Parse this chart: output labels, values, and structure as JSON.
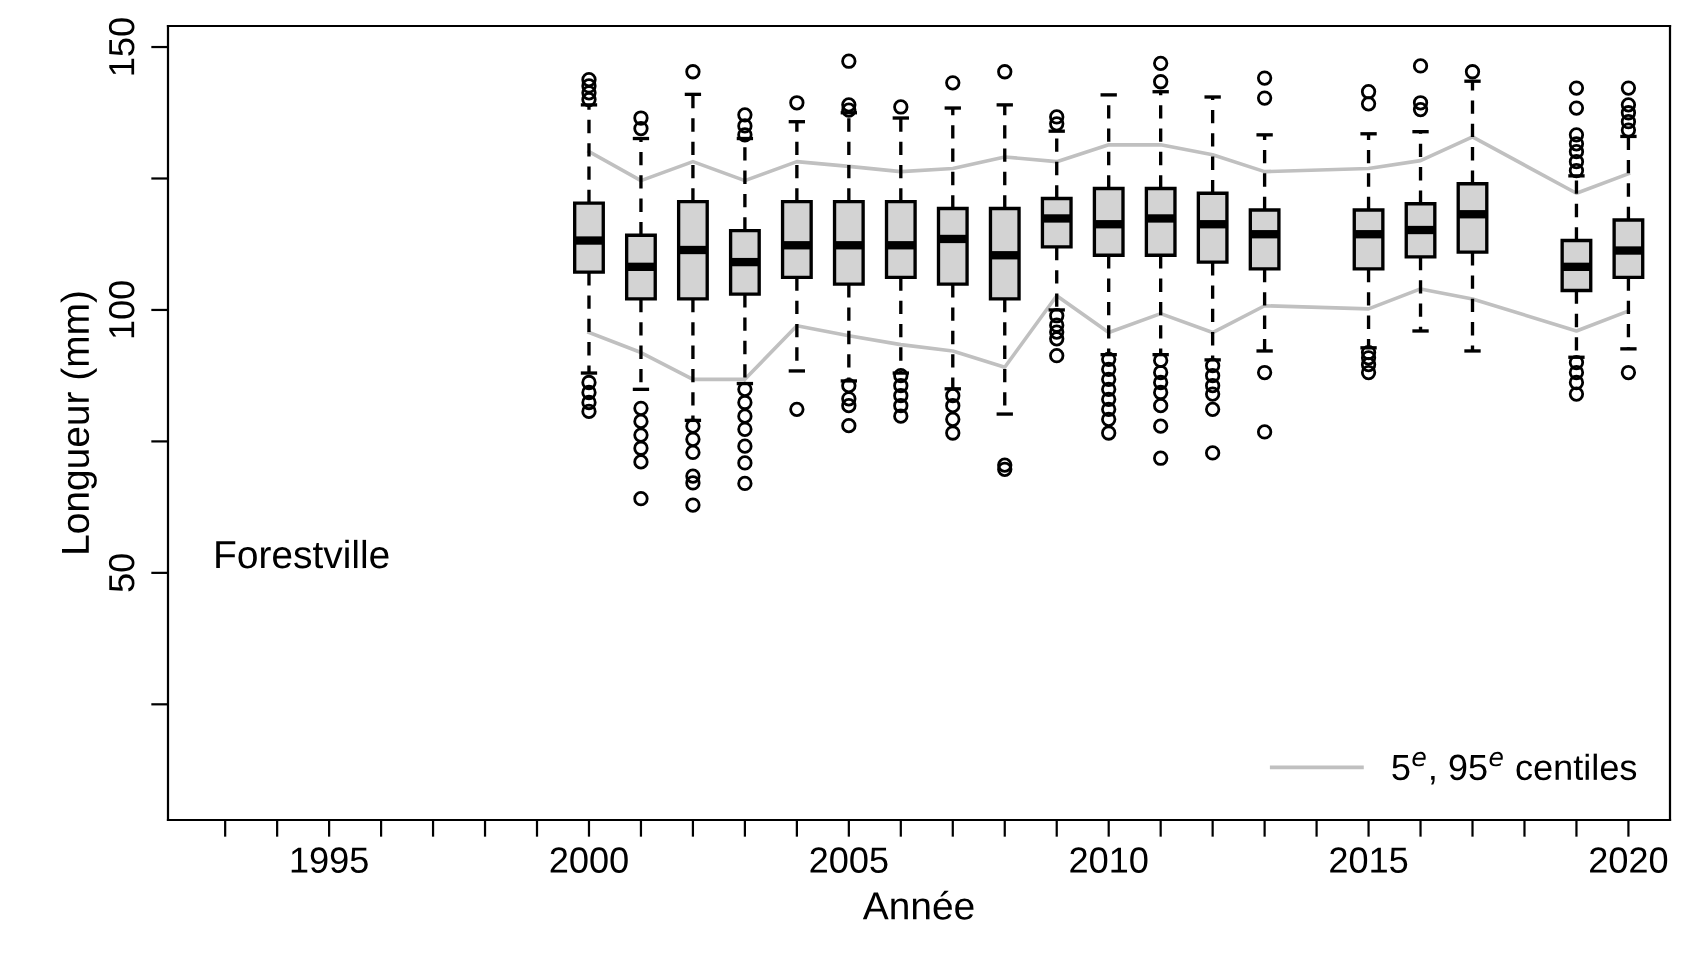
{
  "chart_data": {
    "type": "box",
    "xlabel": "Année",
    "ylabel": "Longueur (mm)",
    "annotations": [
      "Forestville"
    ],
    "x": [
      2000,
      2001,
      2002,
      2003,
      2004,
      2005,
      2006,
      2007,
      2008,
      2009,
      2010,
      2011,
      2012,
      2013,
      2015,
      2016,
      2017,
      2019,
      2020
    ],
    "color": "#d3d3d3",
    "boxes": [
      {
        "low": 88,
        "q1": 107.2,
        "median": 113.2,
        "q3": 120.3,
        "high": 139,
        "outliers": [
          80.7,
          82.4,
          84.3,
          86.2,
          140,
          141.3,
          142.6,
          143.8
        ]
      },
      {
        "low": 84.9,
        "q1": 102.1,
        "median": 108.2,
        "q3": 114.2,
        "high": 132.6,
        "outliers": [
          64.1,
          71.1,
          73.7,
          76.2,
          78.8,
          81.3,
          134.5,
          136.5
        ]
      },
      {
        "low": 79,
        "q1": 102.1,
        "median": 111.4,
        "q3": 120.6,
        "high": 141,
        "outliers": [
          62.9,
          67.1,
          68.4,
          72.9,
          75.4,
          77.9,
          145.3
        ]
      },
      {
        "low": 86,
        "q1": 103,
        "median": 109.1,
        "q3": 115.1,
        "high": 132.6,
        "outliers": [
          67,
          70.9,
          74.1,
          77.3,
          79.8,
          82.4,
          84.9,
          133.3,
          135,
          137.1
        ]
      },
      {
        "low": 88.4,
        "q1": 106.2,
        "median": 112.3,
        "q3": 120.6,
        "high": 135.8,
        "outliers": [
          81.1,
          139.4
        ]
      },
      {
        "low": 86.5,
        "q1": 104.9,
        "median": 112.3,
        "q3": 120.6,
        "high": 137.5,
        "outliers": [
          78,
          81.8,
          83.1,
          85.6,
          138,
          139,
          147.3
        ]
      },
      {
        "low": 88,
        "q1": 106.2,
        "median": 112.3,
        "q3": 120.6,
        "high": 136.5,
        "outliers": [
          79.8,
          81.8,
          83.7,
          85.6,
          87.5,
          138.6
        ]
      },
      {
        "low": 85,
        "q1": 104.9,
        "median": 113.5,
        "q3": 119.3,
        "high": 138.4,
        "outliers": [
          76.6,
          79.2,
          81.8,
          83.7,
          143.2
        ]
      },
      {
        "low": 80.2,
        "q1": 102.1,
        "median": 110.4,
        "q3": 119.3,
        "high": 139,
        "outliers": [
          69.7,
          70.5,
          145.3
        ]
      },
      {
        "low": 100,
        "q1": 112,
        "median": 117.4,
        "q3": 121.2,
        "high": 134,
        "outliers": [
          91.3,
          94.5,
          95.8,
          97.1,
          98.9,
          135.4,
          136.7
        ]
      },
      {
        "low": 91.5,
        "q1": 110.4,
        "median": 116.3,
        "q3": 123.1,
        "high": 140.9,
        "outliers": [
          76.6,
          79.2,
          81.1,
          83,
          84.9,
          86.8,
          88.7,
          90.6
        ]
      },
      {
        "low": 91.5,
        "q1": 110.4,
        "median": 117.4,
        "q3": 123.1,
        "high": 141.5,
        "outliers": [
          71.8,
          77.9,
          81.8,
          84.3,
          86.2,
          88.1,
          90.4,
          143.4,
          146.9
        ]
      },
      {
        "low": 90.5,
        "q1": 109.1,
        "median": 116.3,
        "q3": 122.2,
        "high": 140.5,
        "outliers": [
          72.8,
          81.1,
          84,
          85.6,
          87.5,
          89.4
        ]
      },
      {
        "low": 92.2,
        "q1": 107.8,
        "median": 114.4,
        "q3": 119,
        "high": 133.3,
        "outliers": [
          76.8,
          88.1,
          140.3,
          144.1
        ]
      },
      {
        "low": 92.8,
        "q1": 107.8,
        "median": 114.4,
        "q3": 119,
        "high": 133.5,
        "outliers": [
          88.1,
          89.6,
          90.9,
          91.9,
          139.2,
          141.5
        ]
      },
      {
        "low": 96,
        "q1": 110.1,
        "median": 115.2,
        "q3": 120.2,
        "high": 133.9,
        "outliers": [
          138.1,
          139.4,
          146.4
        ]
      },
      {
        "low": 92.2,
        "q1": 111,
        "median": 118.2,
        "q3": 124,
        "high": 143.5,
        "outliers": [
          145.3
        ]
      },
      {
        "low": 91,
        "q1": 103.7,
        "median": 108.2,
        "q3": 113.2,
        "high": 125.5,
        "outliers": [
          84,
          86.2,
          88.1,
          90,
          126.5,
          128.2,
          130.1,
          131.6,
          133.3,
          138.4,
          142.2
        ]
      },
      {
        "low": 92.6,
        "q1": 106.2,
        "median": 111.3,
        "q3": 117.1,
        "high": 133,
        "outliers": [
          88.1,
          134.2,
          135.8,
          137.5,
          139,
          142.2
        ]
      }
    ],
    "series": [
      {
        "type": "line",
        "name": "5$^{e}$, 95$^{e}$ centiles",
        "color": "#c0c0c0",
        "marker": "none",
        "values": [
          130.1,
          124.6,
          128.2,
          124.6,
          128.2,
          127.3,
          126.3,
          126.9,
          129.1,
          128.2,
          131.4,
          131.4,
          129.5,
          126.3,
          126.9,
          128.4,
          132.9,
          122.2,
          125.9
        ]
      },
      {
        "type": "line",
        "color": "#c0c0c0",
        "marker": "none",
        "values": [
          95.7,
          91.9,
          86.8,
          86.8,
          97,
          95.1,
          93.4,
          92.2,
          89.1,
          102.7,
          95.7,
          99.3,
          95.7,
          100.8,
          100.2,
          104,
          102.1,
          96,
          99.8
        ]
      }
    ],
    "xlim": [
      1991.9,
      2020.8
    ],
    "xticks": [
      {
        "value": 1993,
        "label": null
      },
      {
        "value": 1994,
        "label": null
      },
      1995,
      {
        "value": 1996,
        "label": null
      },
      {
        "value": 1997,
        "label": null
      },
      {
        "value": 1998,
        "label": null
      },
      {
        "value": 1999,
        "label": null
      },
      2000,
      {
        "value": 2001,
        "label": null
      },
      {
        "value": 2002,
        "label": null
      },
      {
        "value": 2003,
        "label": null
      },
      {
        "value": 2004,
        "label": null
      },
      2005,
      {
        "value": 2006,
        "label": null
      },
      {
        "value": 2007,
        "label": null
      },
      {
        "value": 2008,
        "label": null
      },
      {
        "value": 2009,
        "label": null
      },
      2010,
      {
        "value": 2011,
        "label": null
      },
      {
        "value": 2012,
        "label": null
      },
      {
        "value": 2013,
        "label": null
      },
      {
        "value": 2014,
        "label": null
      },
      2015,
      {
        "value": 2016,
        "label": null
      },
      {
        "value": 2017,
        "label": null
      },
      {
        "value": 2018,
        "label": null
      },
      {
        "value": 2019,
        "label": null
      },
      2020
    ],
    "ylim": [
      3,
      154
    ],
    "yticks": [
      {
        "value": 25,
        "label": null
      },
      50,
      {
        "value": 75,
        "label": null
      },
      100,
      {
        "value": 125,
        "label": null
      },
      150
    ],
    "legend": "bottom right",
    "grid": false,
    "marker": "circle"
  }
}
